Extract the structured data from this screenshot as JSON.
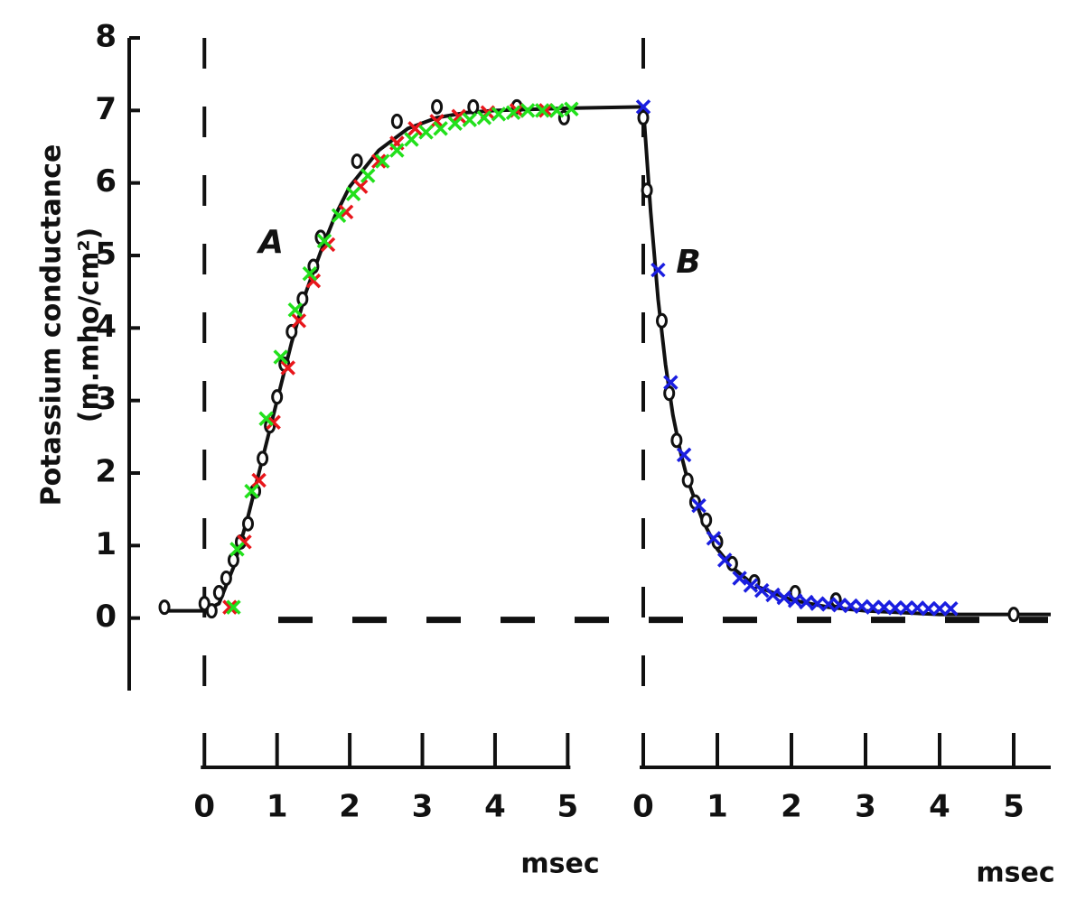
{
  "chart_data": {
    "type": "line",
    "y_label": [
      "Potassium conductance",
      "(m.mho/cm²)"
    ],
    "ylim": [
      -1,
      8
    ],
    "yticks": [
      0,
      1,
      2,
      3,
      4,
      5,
      6,
      7,
      8
    ],
    "panels": [
      {
        "label": "A",
        "x_label": "msec",
        "xlim": [
          -0.6,
          6.04
        ],
        "xticks": [
          0,
          1,
          2,
          3,
          4,
          5
        ],
        "series": [
          {
            "marker": "line",
            "color": "#111111",
            "x": [
              -0.6,
              0,
              0.2,
              0.4,
              0.6,
              0.8,
              1.0,
              1.2,
              1.4,
              1.6,
              1.8,
              2.0,
              2.4,
              2.8,
              3.2,
              3.6,
              4.0,
              5.0,
              6.04
            ],
            "values": [
              0.1,
              0.1,
              0.2,
              0.7,
              1.4,
              2.2,
              3.0,
              3.8,
              4.5,
              5.05,
              5.55,
              5.95,
              6.45,
              6.75,
              6.9,
              6.97,
              7.0,
              7.03,
              7.05
            ]
          },
          {
            "marker": "circle",
            "color": "#111111",
            "x": [
              -0.55,
              0,
              0.1,
              0.2,
              0.3,
              0.4,
              0.5,
              0.6,
              0.7,
              0.8,
              0.9,
              1.0,
              1.1,
              1.2,
              1.35,
              1.5,
              1.6,
              2.1,
              2.65,
              3.2,
              3.7,
              4.3,
              4.95
            ],
            "values": [
              0.15,
              0.2,
              0.1,
              0.35,
              0.55,
              0.8,
              1.05,
              1.3,
              1.75,
              2.2,
              2.65,
              3.05,
              3.5,
              3.95,
              4.4,
              4.85,
              5.25,
              6.3,
              6.85,
              7.05,
              7.05,
              7.05,
              6.9
            ]
          },
          {
            "marker": "x",
            "color": "#e8161b",
            "x": [
              0.35,
              0.55,
              0.75,
              0.95,
              1.15,
              1.3,
              1.5,
              1.7,
              1.95,
              2.15,
              2.4,
              2.65,
              2.9,
              3.2,
              3.5,
              3.9,
              4.3,
              4.7
            ],
            "values": [
              0.15,
              1.05,
              1.9,
              2.7,
              3.45,
              4.1,
              4.65,
              5.15,
              5.6,
              5.95,
              6.3,
              6.55,
              6.75,
              6.85,
              6.92,
              6.97,
              7.0,
              7.0
            ]
          },
          {
            "marker": "x",
            "color": "#22e01c",
            "x": [
              0.4,
              0.45,
              0.65,
              0.85,
              1.05,
              1.25,
              1.45,
              1.65,
              1.85,
              2.05,
              2.25,
              2.45,
              2.65,
              2.85,
              3.05,
              3.25,
              3.45,
              3.65,
              3.85,
              4.05,
              4.25,
              4.45,
              4.65,
              4.85,
              5.05
            ],
            "values": [
              0.15,
              0.95,
              1.75,
              2.75,
              3.6,
              4.25,
              4.75,
              5.2,
              5.55,
              5.85,
              6.1,
              6.3,
              6.45,
              6.6,
              6.7,
              6.75,
              6.82,
              6.87,
              6.9,
              6.95,
              6.97,
              7.0,
              7.0,
              7.0,
              7.02
            ]
          }
        ]
      },
      {
        "label": "B",
        "x_label": "msec",
        "xlim": [
          0,
          5.5
        ],
        "xticks": [
          0,
          1,
          2,
          3,
          4,
          5
        ],
        "series": [
          {
            "marker": "line",
            "color": "#111111",
            "x": [
              0,
              0.1,
              0.2,
              0.3,
              0.4,
              0.5,
              0.6,
              0.8,
              1.0,
              1.2,
              1.5,
              2.0,
              2.5,
              3.0,
              4.0,
              5.5
            ],
            "values": [
              7.05,
              5.6,
              4.4,
              3.5,
              2.8,
              2.3,
              1.9,
              1.35,
              0.95,
              0.7,
              0.45,
              0.25,
              0.15,
              0.1,
              0.05,
              0.05
            ]
          },
          {
            "marker": "circle",
            "color": "#111111",
            "x": [
              0,
              0.05,
              0.25,
              0.35,
              0.45,
              0.6,
              0.7,
              0.85,
              1.0,
              1.2,
              1.5,
              2.05,
              2.6,
              5.0
            ],
            "values": [
              6.9,
              5.9,
              4.1,
              3.1,
              2.45,
              1.9,
              1.6,
              1.35,
              1.05,
              0.75,
              0.5,
              0.35,
              0.25,
              0.05
            ]
          },
          {
            "marker": "x",
            "color": "#1a1ee0",
            "x": [
              0,
              0.2,
              0.37,
              0.55,
              0.75,
              0.95,
              1.1,
              1.3,
              1.45,
              1.6,
              1.75,
              1.9,
              2.05,
              2.2,
              2.35,
              2.5,
              2.65,
              2.8,
              2.95,
              3.1,
              3.25,
              3.4,
              3.55,
              3.7,
              3.85,
              4.0,
              4.15
            ],
            "values": [
              7.05,
              4.8,
              3.25,
              2.25,
              1.55,
              1.1,
              0.8,
              0.55,
              0.45,
              0.38,
              0.32,
              0.28,
              0.24,
              0.22,
              0.2,
              0.19,
              0.18,
              0.17,
              0.16,
              0.15,
              0.15,
              0.14,
              0.14,
              0.14,
              0.13,
              0.13,
              0.13
            ]
          }
        ]
      }
    ]
  }
}
